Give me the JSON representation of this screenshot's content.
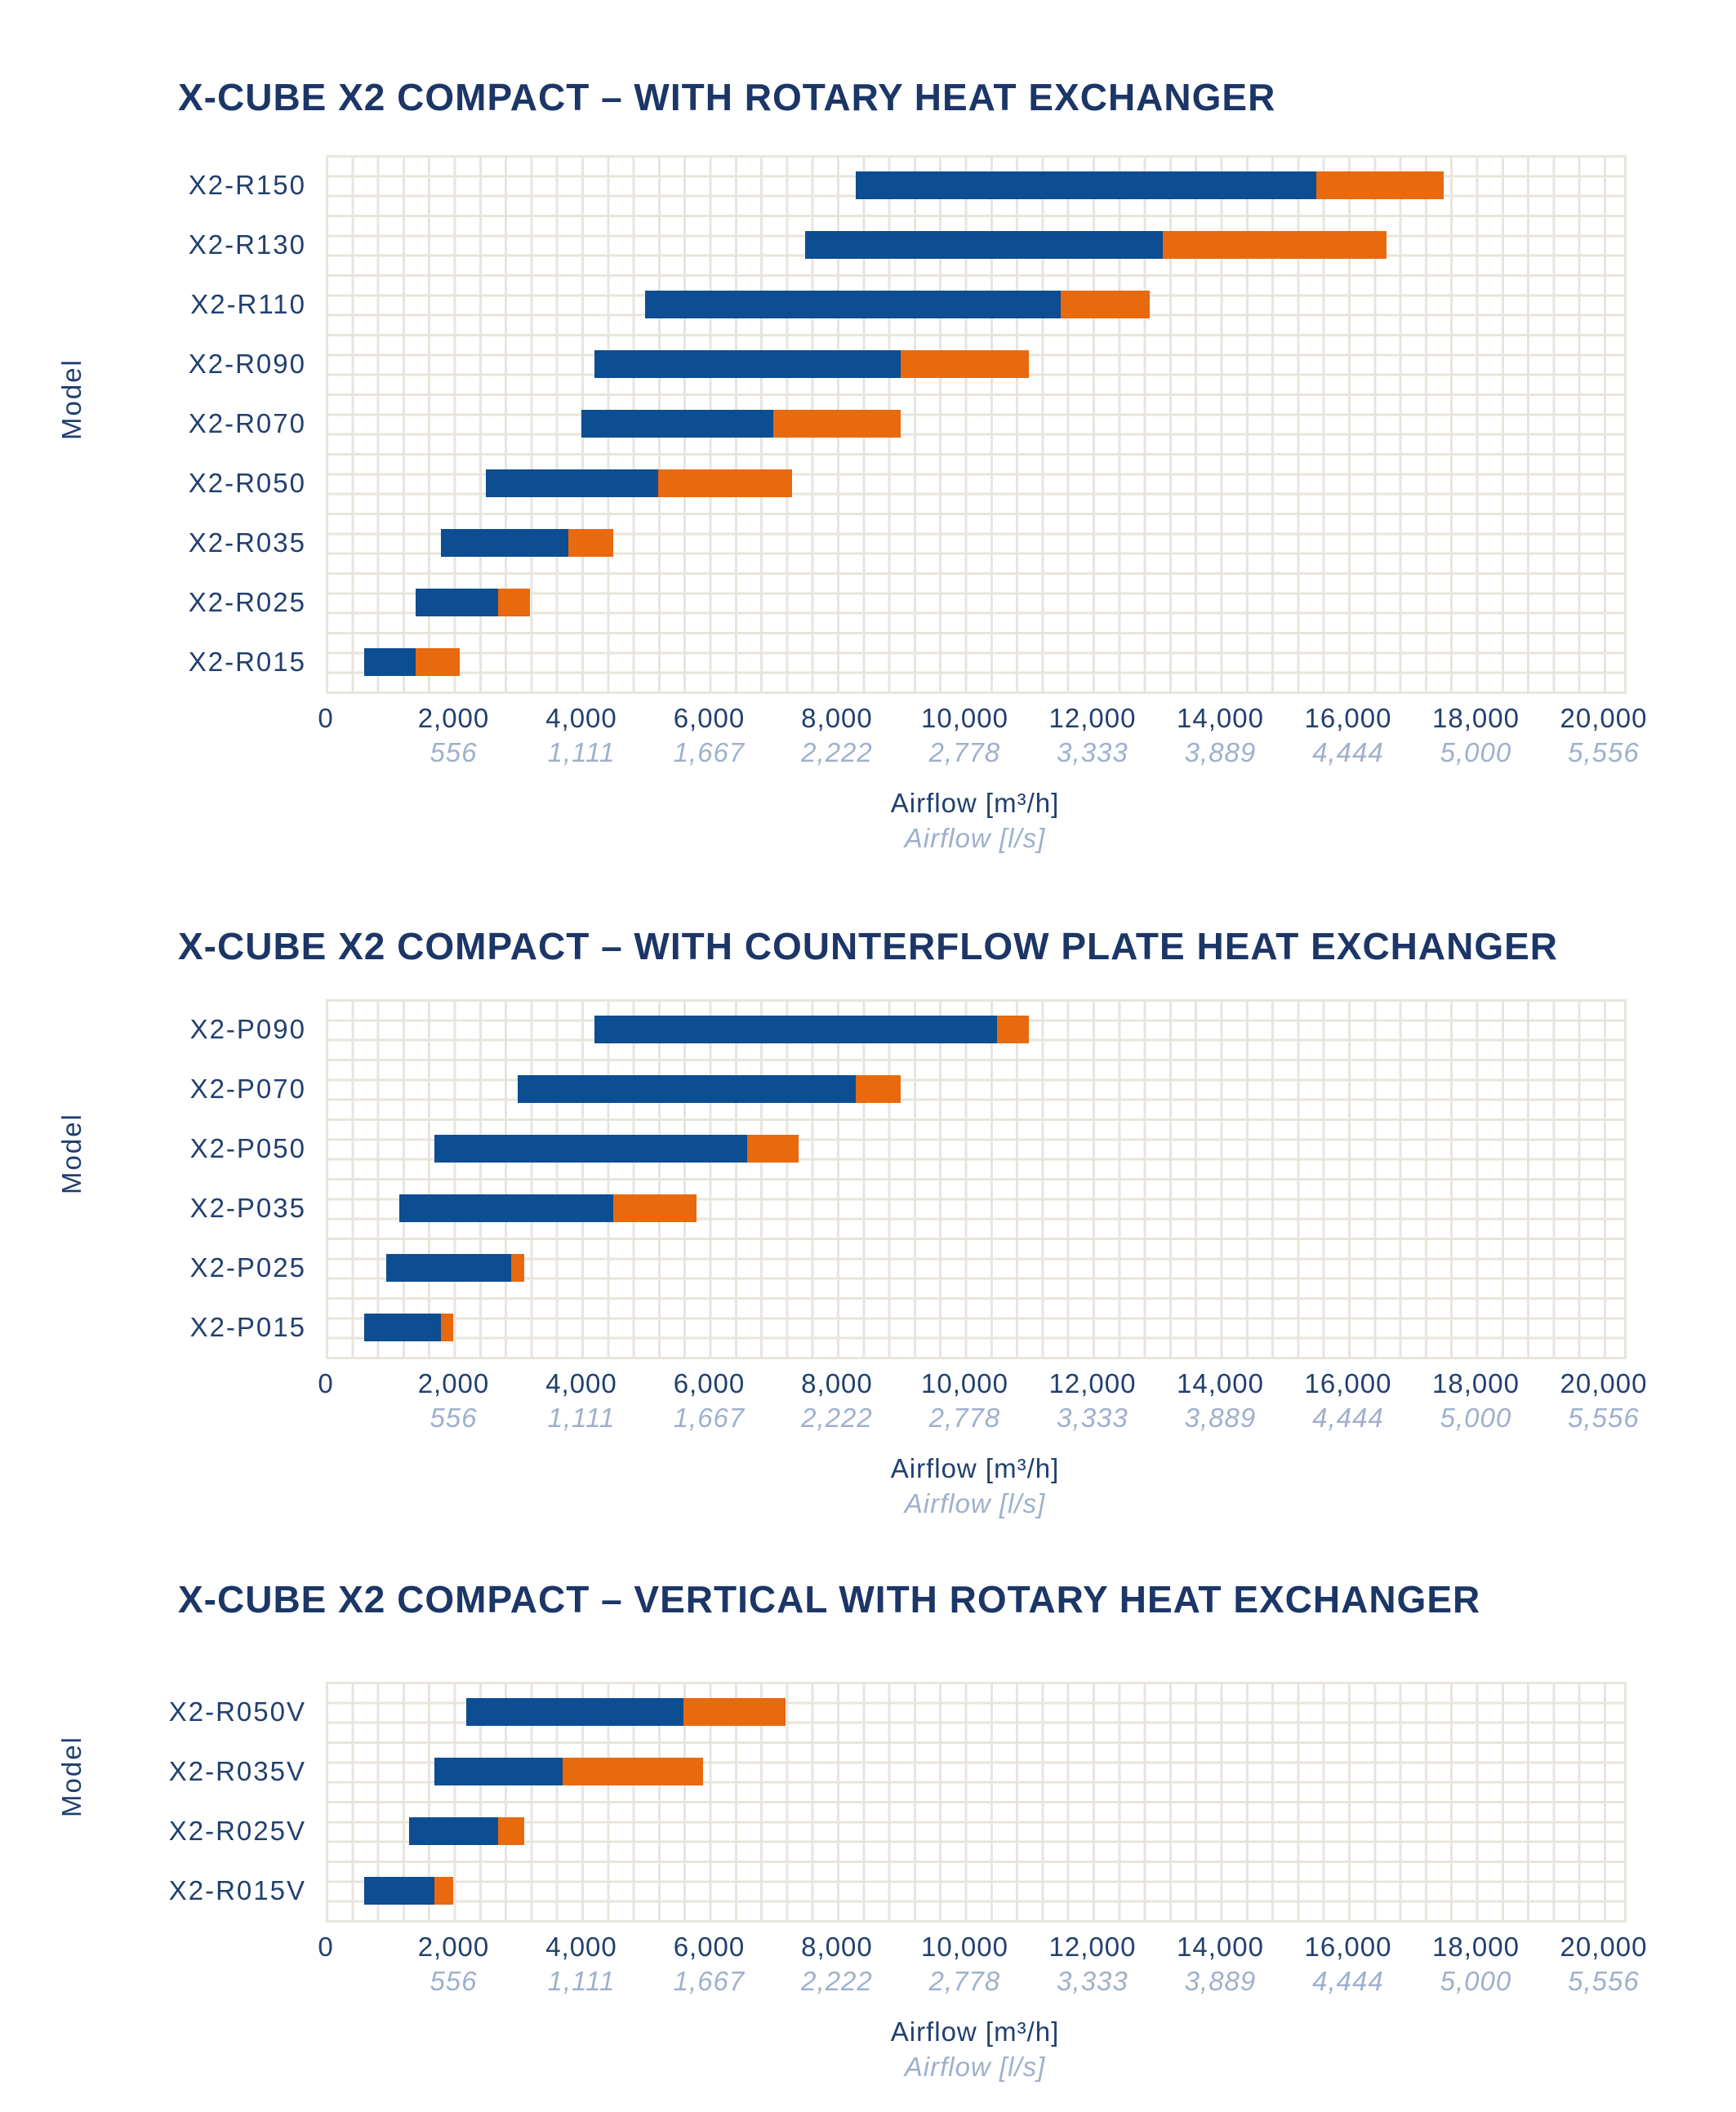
{
  "colors": {
    "bar_blue": "#0d4d92",
    "bar_orange": "#e8690e",
    "title_text": "#1b3667",
    "axis_text": "#21406f",
    "axis_secondary_text": "#9fb0cc",
    "gridline": "#e8e5dc",
    "background": "#ffffff"
  },
  "axis": {
    "primary_ticks": [
      "0",
      "2,000",
      "4,000",
      "6,000",
      "8,000",
      "10,000",
      "12,000",
      "14,000",
      "16,000",
      "18,000",
      "20,000"
    ],
    "secondary_ticks": [
      "556",
      "1,111",
      "1,667",
      "2,222",
      "2,778",
      "3,333",
      "3,889",
      "4,444",
      "5,000",
      "5,556"
    ],
    "primary_label": "Airflow [m³/h]",
    "secondary_label": "Airflow [l/s]",
    "y_axis_label": "Model",
    "tick_step_m3h": 2000,
    "minor_grid_step_m3h": 400
  },
  "chart_data": [
    {
      "type": "bar",
      "orientation": "horizontal",
      "title": "X-CUBE X2 COMPACT – WITH ROTARY HEAT EXCHANGER",
      "ylabel": "Model",
      "xlabel": "Airflow [m³/h]",
      "xlabel2": "Airflow [l/s]",
      "xlim": [
        0,
        20000
      ],
      "grid": true,
      "legend": "none",
      "segment_colors": {
        "lower_range": "#0d4d92",
        "upper_range": "#e8690e"
      },
      "bars": [
        {
          "label": "X2-R150",
          "min": 8300,
          "nominal": 15500,
          "max": 17500
        },
        {
          "label": "X2-R130",
          "min": 7500,
          "nominal": 13100,
          "max": 16600
        },
        {
          "label": "X2-R110",
          "min": 5000,
          "nominal": 11500,
          "max": 12900
        },
        {
          "label": "X2-R090",
          "min": 4200,
          "nominal": 9000,
          "max": 11000
        },
        {
          "label": "X2-R070",
          "min": 4000,
          "nominal": 7000,
          "max": 9000
        },
        {
          "label": "X2-R050",
          "min": 2500,
          "nominal": 5200,
          "max": 7300
        },
        {
          "label": "X2-R035",
          "min": 1800,
          "nominal": 3800,
          "max": 4500
        },
        {
          "label": "X2-R025",
          "min": 1400,
          "nominal": 2700,
          "max": 3200
        },
        {
          "label": "X2-R015",
          "min": 600,
          "nominal": 1400,
          "max": 2100
        }
      ]
    },
    {
      "type": "bar",
      "orientation": "horizontal",
      "title": "X-CUBE X2 COMPACT – WITH COUNTERFLOW PLATE HEAT EXCHANGER",
      "ylabel": "Model",
      "xlabel": "Airflow [m³/h]",
      "xlabel2": "Airflow [l/s]",
      "xlim": [
        0,
        20000
      ],
      "grid": true,
      "legend": "none",
      "segment_colors": {
        "lower_range": "#0d4d92",
        "upper_range": "#e8690e"
      },
      "bars": [
        {
          "label": "X2-P090",
          "min": 4200,
          "nominal": 10500,
          "max": 11000
        },
        {
          "label": "X2-P070",
          "min": 3000,
          "nominal": 8300,
          "max": 9000
        },
        {
          "label": "X2-P050",
          "min": 1700,
          "nominal": 6600,
          "max": 7400
        },
        {
          "label": "X2-P035",
          "min": 1150,
          "nominal": 4500,
          "max": 5800
        },
        {
          "label": "X2-P025",
          "min": 950,
          "nominal": 2900,
          "max": 3100
        },
        {
          "label": "X2-P015",
          "min": 600,
          "nominal": 1800,
          "max": 2000
        }
      ]
    },
    {
      "type": "bar",
      "orientation": "horizontal",
      "title": "X-CUBE X2 COMPACT – VERTICAL WITH ROTARY HEAT EXCHANGER",
      "ylabel": "Model",
      "xlabel": "Airflow [m³/h]",
      "xlabel2": "Airflow [l/s]",
      "xlim": [
        0,
        20000
      ],
      "grid": true,
      "legend": "none",
      "segment_colors": {
        "lower_range": "#0d4d92",
        "upper_range": "#e8690e"
      },
      "bars": [
        {
          "label": "X2-R050V",
          "min": 2200,
          "nominal": 5600,
          "max": 7200
        },
        {
          "label": "X2-R035V",
          "min": 1700,
          "nominal": 3700,
          "max": 5900
        },
        {
          "label": "X2-R025V",
          "min": 1300,
          "nominal": 2700,
          "max": 3100
        },
        {
          "label": "X2-R015V",
          "min": 600,
          "nominal": 1700,
          "max": 2000
        }
      ]
    }
  ]
}
